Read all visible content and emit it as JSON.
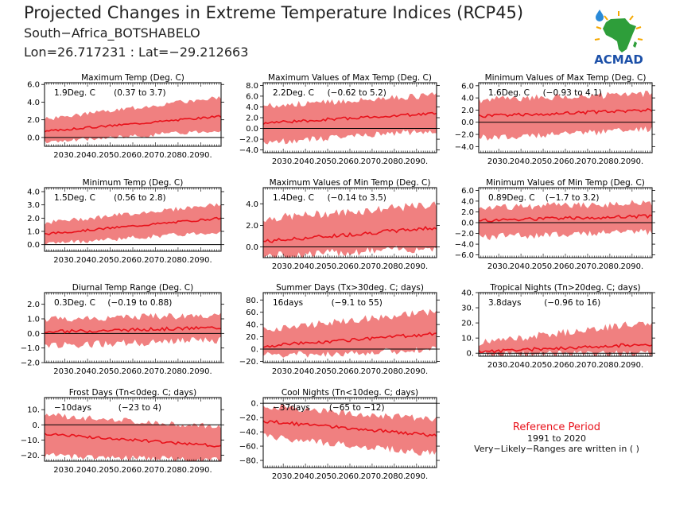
{
  "header": {
    "title": "Projected Changes in Extreme Temperature Indices (RCP45)",
    "station": "South−Africa_BOTSHABELO",
    "coords": "Lon=26.717231 : Lat=−29.212663"
  },
  "logo": {
    "text": "ACMAD",
    "icon": "africa-map-icon",
    "colors": {
      "land": "#2e9e3a",
      "text": "#1c50a8",
      "rays": "#f5a800",
      "drop": "#2a8ad8"
    }
  },
  "reference": {
    "title": "Reference Period",
    "years": "1991 to 2020",
    "note": "Very−Likely−Ranges are written in ( )"
  },
  "colors": {
    "band": "#f08080",
    "line": "#e8121b",
    "zero": "#000000"
  },
  "chart_data": [
    {
      "type": "area",
      "title": "Maximum Temp (Deg. C)",
      "mean_label": "1.9Deg. C",
      "range_label": "(0.37 to 3.7)",
      "x": [
        2021,
        2099
      ],
      "xticks": [
        2030,
        2040,
        2050,
        2060,
        2070,
        2080,
        2090
      ],
      "xtick_labels": [
        "2030.",
        "2040.",
        "2050.",
        "2060.",
        "2070.",
        "2080.",
        "2090."
      ],
      "ylim": [
        -1,
        6.2
      ],
      "yticks": [
        0,
        2,
        4,
        6
      ],
      "ytick_labels": [
        "0.0",
        "2.0",
        "4.0",
        "6.0"
      ],
      "mean_start": 0.7,
      "mean_end": 2.4,
      "lower_start": -0.5,
      "lower_end": 0.9,
      "upper_start": 2.0,
      "upper_end": 4.5,
      "variability": 0.5
    },
    {
      "type": "area",
      "title": "Maximum Values of Max Temp (Deg. C)",
      "mean_label": "2.2Deg. C",
      "range_label": "(−0.62 to 5.2)",
      "x": [
        2021,
        2099
      ],
      "xticks": [
        2030,
        2040,
        2050,
        2060,
        2070,
        2080,
        2090
      ],
      "xtick_labels": [
        "2030.",
        "2040.",
        "2050.",
        "2060.",
        "2070.",
        "2080.",
        "2090."
      ],
      "ylim": [
        -4.5,
        8.5
      ],
      "yticks": [
        -4,
        -2,
        0,
        2,
        4,
        6,
        8
      ],
      "ytick_labels": [
        "−4.0",
        "−2.0",
        "0.0",
        "2.0",
        "4.0",
        "6.0",
        "8.0"
      ],
      "mean_start": 1.0,
      "mean_end": 2.8,
      "lower_start": -2.5,
      "lower_end": -0.3,
      "upper_start": 4.0,
      "upper_end": 6.0,
      "variability": 1.2
    },
    {
      "type": "area",
      "title": "Minimum Values of Max Temp (Deg. C)",
      "mean_label": "1.6Deg. C",
      "range_label": "(−0.93 to 4.1)",
      "x": [
        2021,
        2099
      ],
      "xticks": [
        2030,
        2040,
        2050,
        2060,
        2070,
        2080,
        2090
      ],
      "xtick_labels": [
        "2030.",
        "2040.",
        "2050.",
        "2060.",
        "2070.",
        "2080.",
        "2090."
      ],
      "ylim": [
        -5,
        6.5
      ],
      "yticks": [
        -4,
        -2,
        0,
        2,
        4,
        6
      ],
      "ytick_labels": [
        "−4.0",
        "−2.0",
        "0.0",
        "2.0",
        "4.0",
        "6.0"
      ],
      "mean_start": 1.0,
      "mean_end": 2.0,
      "lower_start": -2.5,
      "lower_end": -1.0,
      "upper_start": 3.5,
      "upper_end": 4.5,
      "variability": 1.2
    },
    {
      "type": "area",
      "title": "Minimum Temp (Deg. C)",
      "mean_label": "1.5Deg. C",
      "range_label": "(0.56 to 2.8)",
      "x": [
        2021,
        2099
      ],
      "xticks": [
        2030,
        2040,
        2050,
        2060,
        2070,
        2080,
        2090
      ],
      "xtick_labels": [
        "2030.",
        "2040.",
        "2050.",
        "2060.",
        "2070.",
        "2080.",
        "2090."
      ],
      "ylim": [
        -0.5,
        4.3
      ],
      "yticks": [
        0,
        1,
        2,
        3,
        4
      ],
      "ytick_labels": [
        "0.0",
        "1.0",
        "2.0",
        "3.0",
        "4.0"
      ],
      "mean_start": 0.8,
      "mean_end": 2.0,
      "lower_start": 0.1,
      "lower_end": 1.0,
      "upper_start": 1.6,
      "upper_end": 3.0,
      "variability": 0.35
    },
    {
      "type": "area",
      "title": "Maximum Values of Min Temp (Deg. C)",
      "mean_label": "1.4Deg. C",
      "range_label": "(−0.14 to 3.5)",
      "x": [
        2021,
        2099
      ],
      "xticks": [
        2030,
        2040,
        2050,
        2060,
        2070,
        2080,
        2090
      ],
      "xtick_labels": [
        "2030.",
        "2040.",
        "2050.",
        "2060.",
        "2070.",
        "2080.",
        "2090."
      ],
      "ylim": [
        -1,
        5.5
      ],
      "yticks": [
        0,
        2,
        4
      ],
      "ytick_labels": [
        "0.0",
        "2.0",
        "4.0"
      ],
      "mean_start": 0.5,
      "mean_end": 1.8,
      "lower_start": -0.8,
      "lower_end": 0.0,
      "upper_start": 2.5,
      "upper_end": 3.8,
      "variability": 0.8
    },
    {
      "type": "area",
      "title": "Minimum Values of Min Temp (Deg. C)",
      "mean_label": "0.89Deg. C",
      "range_label": "(−1.7 to 3.2)",
      "x": [
        2021,
        2099
      ],
      "xticks": [
        2030,
        2040,
        2050,
        2060,
        2070,
        2080,
        2090
      ],
      "xtick_labels": [
        "2030.",
        "2040.",
        "2050.",
        "2060.",
        "2070.",
        "2080.",
        "2090."
      ],
      "ylim": [
        -6.5,
        6.5
      ],
      "yticks": [
        -6,
        -4,
        -2,
        0,
        2,
        4,
        6
      ],
      "ytick_labels": [
        "−6.0",
        "−4.0",
        "−2.0",
        "0.0",
        "2.0",
        "4.0",
        "6.0"
      ],
      "mean_start": 0.4,
      "mean_end": 1.2,
      "lower_start": -2.5,
      "lower_end": -1.5,
      "upper_start": 2.5,
      "upper_end": 3.5,
      "variability": 1.4
    },
    {
      "type": "area",
      "title": "Diurnal Temp Range (Deg. C)",
      "mean_label": "0.3Deg. C",
      "range_label": "(−0.19 to 0.88)",
      "x": [
        2021,
        2099
      ],
      "xticks": [
        2030,
        2040,
        2050,
        2060,
        2070,
        2080,
        2090
      ],
      "xtick_labels": [
        "2030.",
        "2040.",
        "2050.",
        "2060.",
        "2070.",
        "2080.",
        "2090."
      ],
      "ylim": [
        -2,
        2.8
      ],
      "yticks": [
        -2,
        -1,
        0,
        1,
        2
      ],
      "ytick_labels": [
        "−2.0",
        "−1.0",
        "0.0",
        "1.0",
        "2.0"
      ],
      "mean_start": 0.1,
      "mean_end": 0.4,
      "lower_start": -0.8,
      "lower_end": -0.4,
      "upper_start": 0.9,
      "upper_end": 1.2,
      "variability": 0.5
    },
    {
      "type": "area",
      "title": "Summer Days (Tx>30deg. C; days)",
      "mean_label": "16days",
      "range_label": "(−9.1 to 55)",
      "x": [
        2021,
        2099
      ],
      "xticks": [
        2030,
        2040,
        2050,
        2060,
        2070,
        2080,
        2090
      ],
      "xtick_labels": [
        "2030.",
        "2040.",
        "2050.",
        "2060.",
        "2070.",
        "2080.",
        "2090."
      ],
      "ylim": [
        -22,
        92
      ],
      "yticks": [
        -20,
        0,
        20,
        40,
        60,
        80
      ],
      "ytick_labels": [
        "−20.",
        "0.",
        "20.",
        "40.",
        "60.",
        "80."
      ],
      "mean_start": 5,
      "mean_end": 25,
      "lower_start": -10,
      "lower_end": 0,
      "upper_start": 30,
      "upper_end": 60,
      "variability": 12
    },
    {
      "type": "area",
      "title": "Tropical Nights (Tn>20deg. C; days)",
      "mean_label": "3.8days",
      "range_label": "(−0.96 to 16)",
      "x": [
        2021,
        2099
      ],
      "xticks": [
        2030,
        2040,
        2050,
        2060,
        2070,
        2080,
        2090
      ],
      "xtick_labels": [
        "2030.",
        "2040.",
        "2050.",
        "2060.",
        "2070.",
        "2080.",
        "2090."
      ],
      "ylim": [
        -2,
        40
      ],
      "yticks": [
        0,
        10,
        20,
        30,
        40
      ],
      "ytick_labels": [
        "0.",
        "10.",
        "20.",
        "30.",
        "40."
      ],
      "mean_start": 1,
      "mean_end": 6,
      "lower_start": 0,
      "lower_end": 0,
      "upper_start": 6,
      "upper_end": 20,
      "variability": 5
    },
    {
      "type": "area",
      "title": "Frost Days (Tn<0deg. C; days)",
      "mean_label": "−10days",
      "range_label": "(−23 to 4)",
      "x": [
        2021,
        2099
      ],
      "xticks": [
        2030,
        2040,
        2050,
        2060,
        2070,
        2080,
        2090
      ],
      "xtick_labels": [
        "2030.",
        "2040.",
        "2050.",
        "2060.",
        "2070.",
        "2080.",
        "2090."
      ],
      "ylim": [
        -24,
        18
      ],
      "yticks": [
        -20,
        -10,
        0,
        10
      ],
      "ytick_labels": [
        "−20.",
        "−10.",
        "0.",
        "10."
      ],
      "mean_start": -6,
      "mean_end": -14,
      "lower_start": -20,
      "lower_end": -23,
      "upper_start": 6,
      "upper_end": -2,
      "variability": 4
    },
    {
      "type": "area",
      "title": "Cool Nights (Tn<10deg. C; days)",
      "mean_label": "−37days",
      "range_label": "(−65 to −12)",
      "x": [
        2021,
        2099
      ],
      "xticks": [
        2030,
        2040,
        2050,
        2060,
        2070,
        2080,
        2090
      ],
      "xtick_labels": [
        "2030.",
        "2040.",
        "2050.",
        "2060.",
        "2070.",
        "2080.",
        "2090."
      ],
      "ylim": [
        -90,
        8
      ],
      "yticks": [
        -80,
        -60,
        -40,
        -20,
        0
      ],
      "ytick_labels": [
        "−80.",
        "−60.",
        "−40.",
        "−20.",
        "0."
      ],
      "mean_start": -25,
      "mean_end": -45,
      "lower_start": -45,
      "lower_end": -70,
      "upper_start": -5,
      "upper_end": -25,
      "variability": 10
    }
  ]
}
